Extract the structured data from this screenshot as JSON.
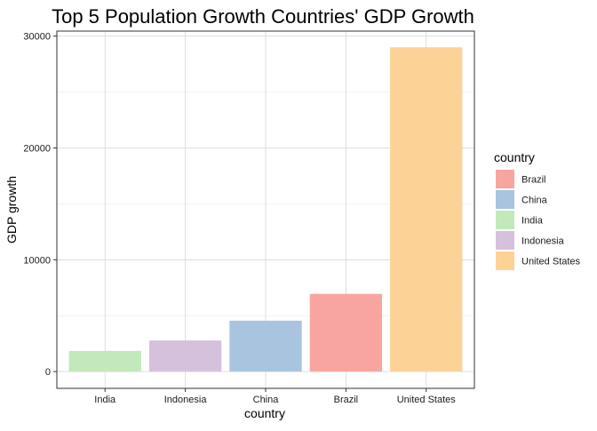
{
  "chart_data": {
    "type": "bar",
    "title": "Top 5 Population Growth Countries' GDP Growth",
    "xlabel": "country",
    "ylabel": "GDP growth",
    "categories": [
      "India",
      "Indonesia",
      "China",
      "Brazil",
      "United States"
    ],
    "values": [
      1850,
      2780,
      4550,
      6950,
      29000
    ],
    "ylim": [
      -1500,
      30450
    ],
    "yticks": [
      0,
      10000,
      20000,
      30000
    ],
    "ytick_labels": [
      "0",
      "10000",
      "20000",
      "30000"
    ],
    "grid": true,
    "legend": {
      "title": "country",
      "placement": "right",
      "entries": [
        "Brazil",
        "China",
        "India",
        "Indonesia",
        "United States"
      ]
    },
    "colors": {
      "Brazil": "#F8A5A1",
      "China": "#A8C4DE",
      "India": "#C3E8BB",
      "Indonesia": "#D6C1DD",
      "United States": "#FDD297"
    }
  }
}
